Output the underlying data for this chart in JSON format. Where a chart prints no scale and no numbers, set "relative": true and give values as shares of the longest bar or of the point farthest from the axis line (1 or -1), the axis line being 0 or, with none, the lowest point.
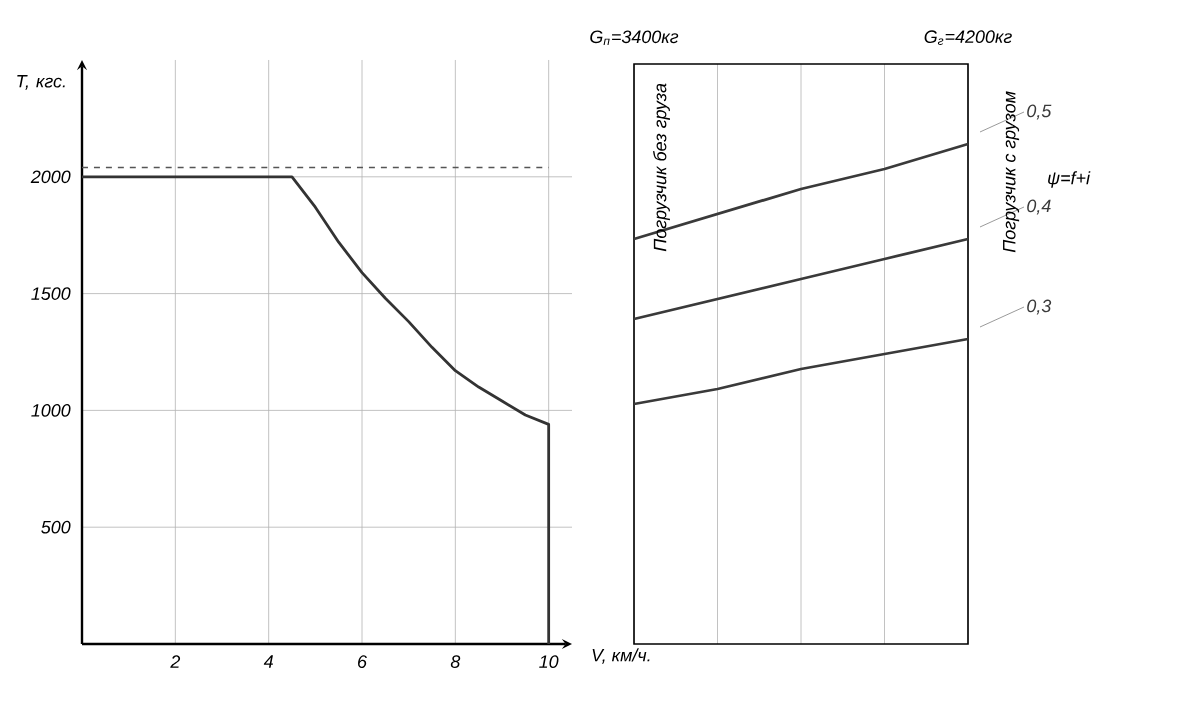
{
  "chart_data": [
    {
      "type": "line",
      "xlabel": "V, км/ч.",
      "ylabel": "T, кгс.",
      "xlim": [
        0,
        10.5
      ],
      "ylim": [
        0,
        2500
      ],
      "xticks": [
        2,
        4,
        6,
        8,
        10
      ],
      "yticks": [
        500,
        1000,
        1500,
        2000
      ],
      "grid": true,
      "x": [
        0,
        4.5,
        5,
        5.5,
        6,
        6.5,
        7,
        7.5,
        8,
        8.5,
        9,
        9.5,
        10,
        10
      ],
      "series": [
        {
          "color": "#333333",
          "values": [
            2000,
            2000,
            1870,
            1720,
            1590,
            1480,
            1380,
            1270,
            1170,
            1100,
            1040,
            980,
            940,
            0
          ]
        }
      ],
      "ref_lines": [
        {
          "axis": "y",
          "value": 2040,
          "line_style": "dashed",
          "color": "#555555"
        }
      ]
    },
    {
      "type": "line",
      "categories": [
        null,
        null,
        null,
        null,
        null
      ],
      "relative": true,
      "grid": "x",
      "legend_title": "ψ=f+i",
      "series": [
        {
          "name": "0,5",
          "color": "#3a3a3a",
          "values": [
            0.81,
            0.86,
            0.91,
            0.95,
            1
          ]
        },
        {
          "name": "0,4",
          "color": "#3a3a3a",
          "values": [
            0.65,
            0.69,
            0.73,
            0.77,
            0.81
          ]
        },
        {
          "name": "0,3",
          "color": "#3a3a3a",
          "values": [
            0.48,
            0.51,
            0.55,
            0.58,
            0.61
          ]
        }
      ],
      "annotations": [
        "G$_{п}$=3400кг",
        "G$_{г}$=4200кг",
        "Погрузчик без груза",
        "Погрузчик с грузом"
      ]
    }
  ]
}
